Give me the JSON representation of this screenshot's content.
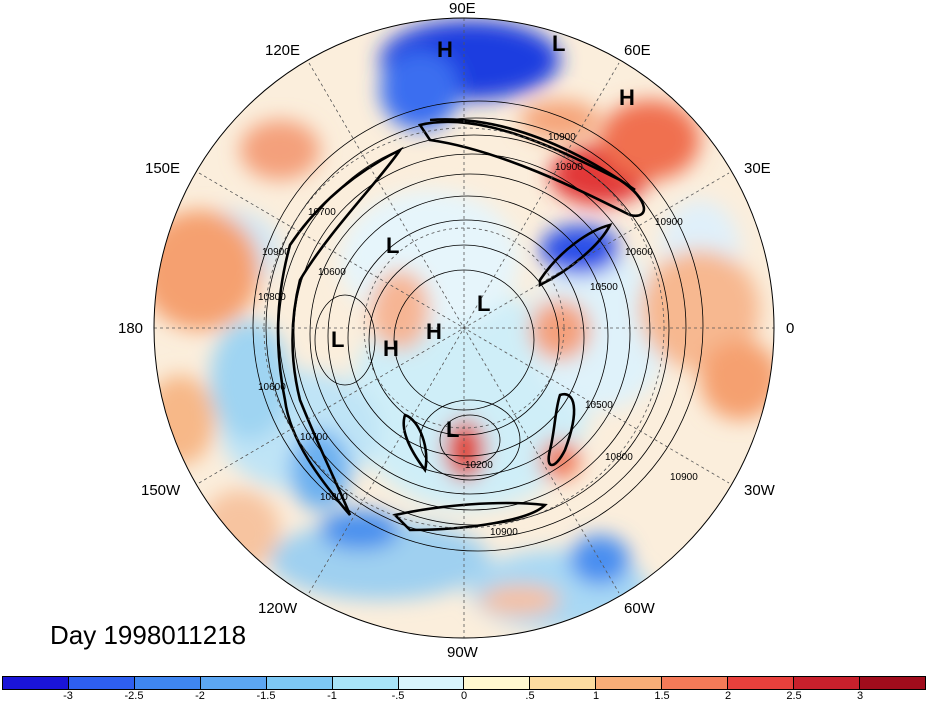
{
  "title": "Day 1998011218",
  "longitude_labels": {
    "lon_90E": "90E",
    "lon_60E": "60E",
    "lon_30E": "30E",
    "lon_0": "0",
    "lon_30W": "30W",
    "lon_60W": "60W",
    "lon_90W": "90W",
    "lon_120W": "120W",
    "lon_150W": "150W",
    "lon_180": "180",
    "lon_150E": "150E",
    "lon_120E": "120E"
  },
  "pressure_centers": [
    {
      "label": "H"
    },
    {
      "label": "L"
    },
    {
      "label": "H"
    },
    {
      "label": "L"
    },
    {
      "label": "L"
    },
    {
      "label": "L"
    },
    {
      "label": "H"
    },
    {
      "label": "H"
    },
    {
      "label": "L"
    }
  ],
  "contour_labels": [
    "10900",
    "10900",
    "10700",
    "10900",
    "10600",
    "10600",
    "10500",
    "10700",
    "10800",
    "10900",
    "10800",
    "10500",
    "10200",
    "10900",
    "10900",
    "10800",
    "10600"
  ],
  "colorbar": {
    "ticks": [
      "-3",
      "-2.5",
      "-2",
      "-1.5",
      "-1",
      "-.5",
      "0",
      ".5",
      "1",
      "1.5",
      "2",
      "2.5",
      "3"
    ],
    "colors": [
      "#1a14d8",
      "#2e5ff0",
      "#3f86f0",
      "#5ca6f2",
      "#7ec8f4",
      "#a8e4f8",
      "#d8f4fc",
      "#fff8d0",
      "#fcdca0",
      "#f8ae78",
      "#f47a58",
      "#e8403c",
      "#c8202c",
      "#a00c1c"
    ]
  }
}
